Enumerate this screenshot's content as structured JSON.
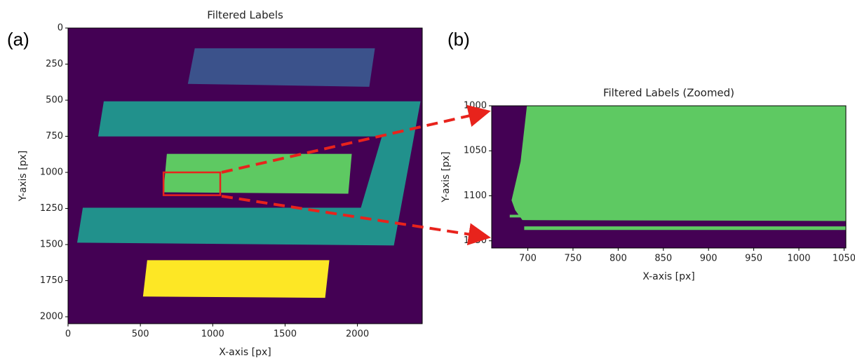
{
  "panel_labels": [
    "(a)",
    "(b)"
  ],
  "chart_data": [
    {
      "type": "image",
      "title": "Filtered Labels",
      "x_label": "X-axis [px]",
      "y_label": "Y-axis [px]",
      "xlim": [
        0,
        2448
      ],
      "ylim": [
        2048,
        0
      ],
      "xticks": [
        0,
        500,
        1000,
        1500,
        2000
      ],
      "yticks": [
        0,
        250,
        500,
        750,
        1000,
        1250,
        1500,
        1750,
        2000
      ],
      "background": "#440154",
      "regions": [
        {
          "color": "#3b528b",
          "x": [
            876,
            2121,
            2082,
            828
          ],
          "y": [
            140,
            140,
            407,
            387
          ]
        },
        {
          "color": "#21918c",
          "x": [
            247,
            2436,
            2252,
            63,
            102,
            2024,
            2169,
            208
          ],
          "y": [
            508,
            508,
            1506,
            1487,
            1245,
            1245,
            751,
            751
          ]
        },
        {
          "color": "#5ec962",
          "x": [
            683,
            1961,
            1937,
            659
          ],
          "y": [
            872,
            872,
            1148,
            1138
          ]
        },
        {
          "color": "#fde725",
          "x": [
            547,
            1806,
            1777,
            518
          ],
          "y": [
            1608,
            1608,
            1869,
            1860
          ]
        }
      ]
    },
    {
      "type": "image",
      "title": "Filtered Labels (Zoomed)",
      "x_label": "X-axis [px]",
      "y_label": "Y-axis [px]",
      "xlim": [
        660,
        1052
      ],
      "ylim": [
        1158,
        1000
      ],
      "xticks": [
        700,
        750,
        800,
        850,
        900,
        950,
        1000,
        1050
      ],
      "yticks": [
        1000,
        1050,
        1100,
        1150
      ],
      "background": "#440154",
      "regions": [
        {
          "color": "#5ec962",
          "x": [
            699,
            1052,
            1052,
            694,
            686,
            682,
            692
          ],
          "y": [
            1000,
            1000,
            1128,
            1127,
            1116,
            1105,
            1062
          ]
        },
        {
          "color": "#5ec962",
          "x": [
            696,
            1052,
            1052,
            696
          ],
          "y": [
            1134,
            1134,
            1138,
            1138
          ]
        },
        {
          "color": "#5ec962",
          "x": [
            680,
            715,
            715,
            680
          ],
          "y": [
            1121,
            1121,
            1124,
            1124
          ]
        }
      ]
    }
  ]
}
